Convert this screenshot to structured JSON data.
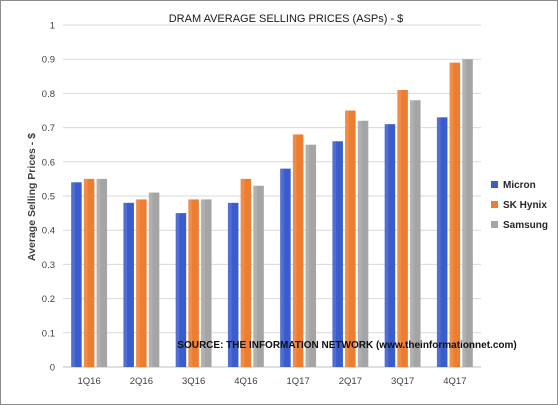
{
  "chart_data": {
    "type": "bar",
    "title": "DRAM AVERAGE SELLING PRICES (ASPs) - $",
    "xlabel": "",
    "ylabel": "Average Selling Prices - $",
    "categories": [
      "1Q16",
      "2Q16",
      "3Q16",
      "4Q16",
      "1Q17",
      "2Q17",
      "3Q17",
      "4Q17"
    ],
    "series": [
      {
        "name": "Micron",
        "color": "#3a5ccc",
        "values": [
          0.54,
          0.48,
          0.45,
          0.48,
          0.58,
          0.66,
          0.71,
          0.73
        ]
      },
      {
        "name": "SK Hynix",
        "color": "#ed7d31",
        "values": [
          0.55,
          0.49,
          0.49,
          0.55,
          0.68,
          0.75,
          0.81,
          0.89
        ]
      },
      {
        "name": "Samsung",
        "color": "#a5a5a5",
        "values": [
          0.55,
          0.51,
          0.49,
          0.53,
          0.65,
          0.72,
          0.78,
          0.9
        ]
      }
    ],
    "ylim": [
      0,
      1
    ],
    "yticks": [
      "0",
      "0.1",
      "0.2",
      "0.3",
      "0.4",
      "0.5",
      "0.6",
      "0.7",
      "0.8",
      "0.9",
      "1"
    ],
    "grid": true,
    "legend_position": "right",
    "annotation": "SOURCE: THE INFORMATION NETWORK (www.theinformationnet.com)"
  }
}
